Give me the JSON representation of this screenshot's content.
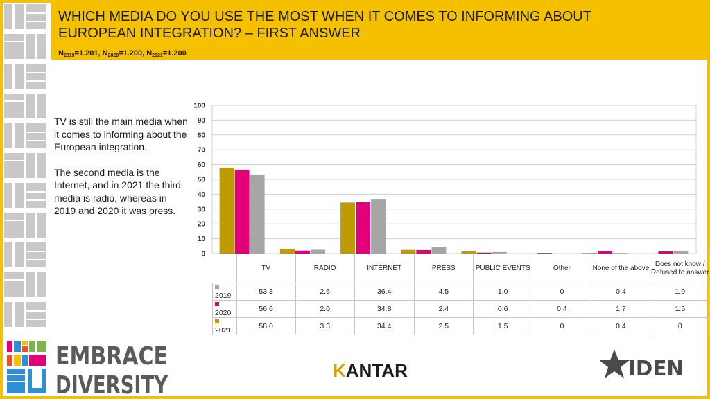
{
  "header": {
    "title_line1": "WHICH MEDIA DO YOU USE THE MOST WHEN IT COMES TO INFORMING ABOUT",
    "title_line2": "EUROPEAN INTEGRATION? – FIRST ANSWER",
    "n_parts": [
      {
        "prefix": "N",
        "sub": "2019",
        "value": "=1.201, "
      },
      {
        "prefix": "N",
        "sub": "2020",
        "value": "=1.200, "
      },
      {
        "prefix": "N",
        "sub": "2021",
        "value": "=1.200"
      }
    ]
  },
  "description": {
    "p1": "TV is still the main media when it comes to informing about the European integration.",
    "p2": "The second media is the Internet, and in 2021 the third media is radio, whereas in 2019 and 2020 it was press."
  },
  "colors": {
    "accent": "#f5c000",
    "s2019": "#a6a6a6",
    "s2020": "#e2007a",
    "s2021": "#bf9b00"
  },
  "chart_data": {
    "type": "bar",
    "categories": [
      "TV",
      "RADIO",
      "INTERNET",
      "PRESS",
      "PUBLIC EVENTS",
      "Other",
      "None of the above",
      "Does not know / Refused to answer"
    ],
    "ylim": [
      0,
      100
    ],
    "yticks": [
      "0",
      "10",
      "20",
      "30",
      "40",
      "50",
      "60",
      "70",
      "80",
      "90",
      "100"
    ],
    "series": [
      {
        "name": "2021",
        "color": "#bf9b00",
        "values": [
          58.0,
          3.3,
          34.4,
          2.5,
          1.5,
          0,
          0.4,
          0
        ],
        "labels": [
          "58.0",
          "3.3",
          "34.4",
          "2.5",
          "1.5",
          "0",
          "0.4",
          "0"
        ]
      },
      {
        "name": "2020",
        "color": "#e2007a",
        "values": [
          56.6,
          2.0,
          34.8,
          2.4,
          0.6,
          0.4,
          1.7,
          1.5
        ],
        "labels": [
          "56.6",
          "2.0",
          "34.8",
          "2.4",
          "0.6",
          "0.4",
          "1.7",
          "1.5"
        ]
      },
      {
        "name": "2019",
        "color": "#a6a6a6",
        "values": [
          53.3,
          2.6,
          36.4,
          4.5,
          1.0,
          0,
          0.4,
          1.9
        ],
        "labels": [
          "53.3",
          "2.6",
          "36.4",
          "4.5",
          "1.0",
          "0",
          "0.4",
          "1.9"
        ]
      }
    ],
    "table_order": [
      "2019",
      "2020",
      "2021"
    ]
  },
  "logos": {
    "embrace_line1": "EMBRACE",
    "embrace_line2": "DIVERSITY",
    "kantar_first": "K",
    "kantar_rest": "ANTAR",
    "iden": "IDEN"
  }
}
